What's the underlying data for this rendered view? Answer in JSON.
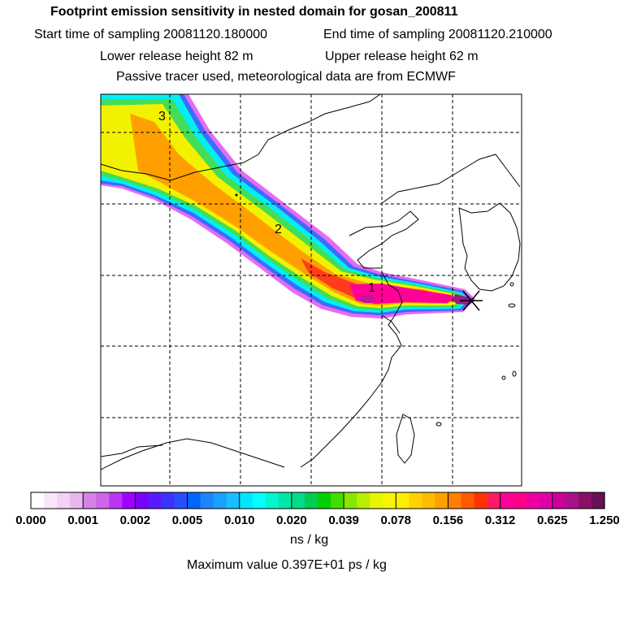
{
  "header": {
    "title": "Footprint emission sensitivity in nested domain for gosan_200811",
    "start_time": "Start time of sampling 20081120.180000",
    "end_time": "End time of sampling 20081120.210000",
    "lower_height": "Lower release height   82 m",
    "upper_height": "Upper release height   62 m",
    "tracer_note": "Passive tracer used, meteorological data are from ECMWF"
  },
  "map": {
    "labels": [
      "3",
      "2",
      "1"
    ]
  },
  "colorbar": {
    "tick_labels": [
      "0.000",
      "0.001",
      "0.002",
      "0.005",
      "0.010",
      "0.020",
      "0.039",
      "0.078",
      "0.156",
      "0.312",
      "0.625",
      "1.250"
    ],
    "colors": [
      "#ffffff",
      "#f8e6f8",
      "#f2d2f5",
      "#e9b6f0",
      "#d782e8",
      "#cc66e6",
      "#bb33f5",
      "#a200ff",
      "#7a00ff",
      "#5a1aff",
      "#3b33ff",
      "#2a4dff",
      "#0066ff",
      "#1f84ff",
      "#1aa0ff",
      "#17bfff",
      "#00e6ff",
      "#00ffff",
      "#00f5d0",
      "#00e6a8",
      "#00dd88",
      "#00cc55",
      "#00d000",
      "#44dd00",
      "#88e600",
      "#b8ee00",
      "#e6f500",
      "#f5f500",
      "#ffee00",
      "#ffd200",
      "#ffbb00",
      "#ffa000",
      "#ff7f00",
      "#ff5a00",
      "#ff3300",
      "#ff1a66",
      "#ff0099",
      "#ff0088",
      "#ee00a0",
      "#dd00aa",
      "#cc0099",
      "#aa1188",
      "#881166",
      "#661155"
    ],
    "units": "ns / kg",
    "max_value": "Maximum value  0.397E+01 ps / kg"
  }
}
